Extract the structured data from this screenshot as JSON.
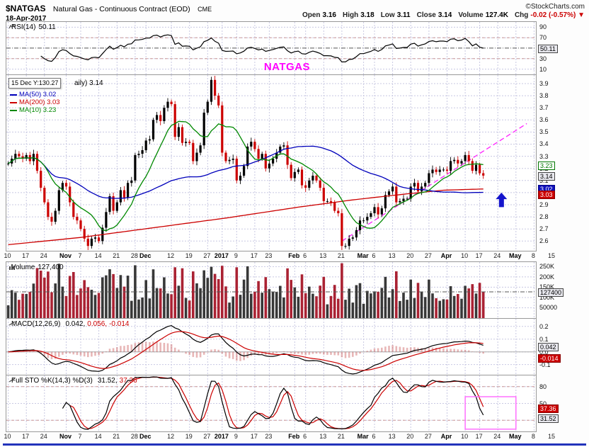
{
  "header": {
    "symbol": "$NATGAS",
    "name": "Natural Gas - Continuous Contract (EOD)",
    "exchange": "CME",
    "source": "©StockCharts.com",
    "date": "18-Apr-2017",
    "down_arrow": "▼",
    "quote": [
      {
        "label": "Open",
        "value": "3.16"
      },
      {
        "label": "High",
        "value": "3.18"
      },
      {
        "label": "Low",
        "value": "3.11"
      },
      {
        "label": "Close",
        "value": "3.14"
      },
      {
        "label": "Volume",
        "value": "127.4K"
      },
      {
        "label": "Chg",
        "value": "-0.02 (-0.57%)",
        "down": true
      }
    ]
  },
  "panels": {
    "rsi": {
      "label": "RSI(14)",
      "value": "50.11"
    },
    "price": {
      "label_tail": "aily) 3.14",
      "legend": [
        {
          "text": "MA(50) 3.02",
          "color": "#0000BB"
        },
        {
          "text": "MA(200) 3.03",
          "color": "#CC0000"
        },
        {
          "text": "MA(10) 3.23",
          "color": "#008800"
        }
      ]
    },
    "volume": {
      "label": "Volume",
      "value": "127,400"
    },
    "macd": {
      "label": "MACD(12,26,9)",
      "values": [
        {
          "text": "0.042,",
          "color": "#000000"
        },
        {
          "text": "0.056,",
          "color": "#CC0000"
        },
        {
          "text": "-0.014",
          "color": "#CC0000"
        }
      ]
    },
    "sto": {
      "label": "Full STO %K(14,3) %D(3)",
      "values": [
        {
          "text": "31.52,",
          "color": "#000000"
        },
        {
          "text": "37.36",
          "color": "#CC0000"
        }
      ]
    }
  },
  "annotations": {
    "natgas": {
      "text": "NATGAS",
      "color": "#FF00FF"
    },
    "tooltip": {
      "text": "15 Dec Y:130.27"
    }
  },
  "x_axis": {
    "slots": 146,
    "ticks": [
      {
        "label": "10",
        "index": 0
      },
      {
        "label": "17",
        "index": 5
      },
      {
        "label": "24",
        "index": 10
      },
      {
        "label": "Nov",
        "index": 16,
        "month": true
      },
      {
        "label": "7",
        "index": 20
      },
      {
        "label": "14",
        "index": 25
      },
      {
        "label": "21",
        "index": 30
      },
      {
        "label": "28",
        "index": 35
      },
      {
        "label": "Dec",
        "index": 38,
        "month": true
      },
      {
        "label": "12",
        "index": 45
      },
      {
        "label": "19",
        "index": 50
      },
      {
        "label": "27",
        "index": 55
      },
      {
        "label": "2017",
        "index": 59,
        "month": true
      },
      {
        "label": "9",
        "index": 63
      },
      {
        "label": "17",
        "index": 68
      },
      {
        "label": "23",
        "index": 72
      },
      {
        "label": "Feb",
        "index": 79,
        "month": true
      },
      {
        "label": "6",
        "index": 82
      },
      {
        "label": "13",
        "index": 87
      },
      {
        "label": "21",
        "index": 92
      },
      {
        "label": "Mar",
        "index": 98,
        "month": true
      },
      {
        "label": "6",
        "index": 101
      },
      {
        "label": "13",
        "index": 106
      },
      {
        "label": "20",
        "index": 111
      },
      {
        "label": "27",
        "index": 116
      },
      {
        "label": "Apr",
        "index": 121,
        "month": true
      },
      {
        "label": "10",
        "index": 126
      },
      {
        "label": "17",
        "index": 130
      },
      {
        "label": "24",
        "index": 135
      },
      {
        "label": "May",
        "index": 140,
        "month": true
      },
      {
        "label": "8",
        "index": 145
      },
      {
        "label": "15",
        "index": 150
      }
    ]
  },
  "chart_data": [
    {
      "panel": "price",
      "type": "candlestick",
      "title": "$NATGAS (Daily)",
      "last_close": 3.14,
      "close": [
        3.24,
        3.28,
        3.32,
        3.3,
        3.28,
        3.31,
        3.26,
        3.32,
        3.18,
        3.04,
        2.92,
        2.8,
        2.76,
        2.85,
        3.02,
        3.08,
        3.05,
        2.92,
        2.8,
        2.77,
        2.7,
        2.62,
        2.56,
        2.62,
        2.63,
        2.6,
        2.71,
        2.84,
        2.97,
        2.85,
        2.92,
        3.02,
        2.96,
        3.08,
        3.1,
        3.31,
        3.32,
        3.35,
        3.43,
        3.44,
        3.6,
        3.64,
        3.59,
        3.7,
        3.75,
        3.73,
        3.46,
        3.54,
        3.41,
        3.42,
        3.41,
        3.26,
        3.33,
        3.39,
        3.66,
        3.75,
        3.93,
        3.8,
        3.72,
        3.33,
        3.26,
        3.27,
        3.28,
        3.1,
        3.14,
        3.22,
        3.38,
        3.42,
        3.36,
        3.28,
        3.32,
        3.2,
        3.24,
        3.28,
        3.33,
        3.38,
        3.39,
        3.23,
        3.12,
        3.17,
        3.19,
        3.06,
        3.04,
        3.1,
        3.14,
        3.1,
        3.04,
        2.93,
        2.93,
        2.92,
        2.85,
        2.83,
        2.56,
        2.56,
        2.62,
        2.63,
        2.69,
        2.77,
        2.77,
        2.8,
        2.83,
        2.88,
        2.82,
        2.87,
        2.98,
        3.01,
        3.05,
        2.92,
        2.93,
        2.95,
        2.95,
        3.05,
        3.08,
        3.01,
        3.05,
        3.08,
        3.16,
        3.19,
        3.17,
        3.19,
        3.19,
        3.18,
        3.26,
        3.27,
        3.24,
        3.26,
        3.31,
        3.26,
        3.18,
        3.23,
        3.16,
        3.14
      ],
      "open_rule": "previous_close",
      "wick_base": 0.018,
      "wick_var": 0.02,
      "up_color": "#000000",
      "down_color": "#CC0000",
      "ylim": [
        2.52,
        3.97
      ],
      "yticks": [
        [
          3.9,
          "3.9"
        ],
        [
          3.8,
          "3.8"
        ],
        [
          3.7,
          "3.7"
        ],
        [
          3.6,
          "3.6"
        ],
        [
          3.5,
          "3.5"
        ],
        [
          3.4,
          "3.4"
        ],
        [
          3.3,
          "3.3"
        ],
        [
          3.2,
          "3.2"
        ],
        [
          3.1,
          "3.1"
        ],
        [
          3.0,
          "3.0"
        ],
        [
          2.9,
          "2.9"
        ],
        [
          2.8,
          "2.8"
        ],
        [
          2.7,
          "2.7"
        ],
        [
          2.6,
          "2.6"
        ]
      ],
      "badges": [
        {
          "t": "3.23",
          "v": 3.23,
          "k": "green"
        },
        {
          "t": "3.14",
          "v": 3.14,
          "k": "gray"
        },
        {
          "t": "3.02",
          "v": 3.02,
          "k": "blue",
          "dy": -2
        },
        {
          "t": "3.03",
          "v": 3.03,
          "k": "red",
          "dy": 7
        }
      ],
      "overlays": [
        {
          "name": "MA(200)",
          "value": 3.03,
          "color": "#CC0000",
          "points": [
            [
              0,
              2.57
            ],
            [
              20,
              2.63
            ],
            [
              40,
              2.71
            ],
            [
              60,
              2.79
            ],
            [
              80,
              2.88
            ],
            [
              95,
              2.94
            ],
            [
              110,
              2.99
            ],
            [
              120,
              3.02
            ],
            [
              131,
              3.03
            ]
          ]
        },
        {
          "name": "MA(50)",
          "period": 50,
          "value": 3.02,
          "color": "#0000BB"
        },
        {
          "name": "MA(10)",
          "period": 10,
          "value": 3.23,
          "color": "#008800"
        }
      ],
      "trendline": {
        "from": [
          92,
          2.6
        ],
        "to": [
          143,
          3.57
        ],
        "color": "#FF22FF"
      },
      "arrow": {
        "index": 136,
        "tip": 3.0,
        "base": 2.88,
        "color": "#1515CC"
      }
    },
    {
      "panel": "rsi",
      "type": "line",
      "indicator": "RSI",
      "period": 14,
      "current": 50.11,
      "derived_from": "price.close",
      "ylim": [
        0,
        100
      ],
      "yticks": [
        [
          90,
          "90"
        ],
        [
          70,
          "70"
        ],
        [
          30,
          "30"
        ],
        [
          10,
          "10"
        ]
      ],
      "bands": [
        70,
        30
      ],
      "value_line": 50.11,
      "badges": [
        {
          "t": "50.11",
          "v": 50.11,
          "k": "gray"
        }
      ]
    },
    {
      "panel": "volume",
      "type": "bar",
      "current": 127400,
      "ylim": [
        0,
        272000
      ],
      "yticks": [
        [
          250000,
          "250K"
        ],
        [
          200000,
          "200K"
        ],
        [
          150000,
          "150K"
        ],
        [
          100000,
          "100K"
        ],
        [
          50000,
          "50000"
        ]
      ],
      "value_line": 127400,
      "up_color": "#383838",
      "down_color": "#AA2233",
      "badges": [
        {
          "t": "127400",
          "v": 127400,
          "k": "gray"
        }
      ]
    },
    {
      "panel": "macd",
      "type": "line",
      "indicator": "MACD",
      "params": [
        12,
        26,
        9
      ],
      "current": [
        0.042,
        0.056,
        -0.014
      ],
      "derived_from": "price.close",
      "ylim": [
        -0.18,
        0.26
      ],
      "yticks": [
        [
          0.2,
          "0.2"
        ],
        [
          0.1,
          "0.1"
        ],
        [
          0,
          "0.0"
        ],
        [
          -0.1,
          "-0.1"
        ]
      ],
      "badges": [
        {
          "t": "0.042",
          "v": 0.042,
          "k": "gray"
        },
        {
          "t": "-0.014",
          "v": -0.014,
          "k": "red",
          "dy": 6
        }
      ]
    },
    {
      "panel": "sto",
      "type": "line",
      "indicator": "Full Stochastic",
      "params": [
        14,
        3,
        3
      ],
      "current": [
        31.52,
        37.36
      ],
      "derived_from": "price.close",
      "ylim": [
        0,
        100
      ],
      "yticks": [
        [
          80,
          "80"
        ],
        [
          50,
          "50"
        ],
        [
          20,
          "20"
        ]
      ],
      "bands": [
        80,
        20
      ],
      "badges": [
        {
          "t": "37.36",
          "v": 37.36,
          "k": "red",
          "dy": -3
        },
        {
          "t": "31.52",
          "v": 31.52,
          "k": "gray",
          "dy": 6
        }
      ],
      "highlight_box": {
        "i0": 126,
        "i1": 140,
        "v0": 4,
        "v1": 62,
        "color": "#FF66FF"
      }
    }
  ]
}
